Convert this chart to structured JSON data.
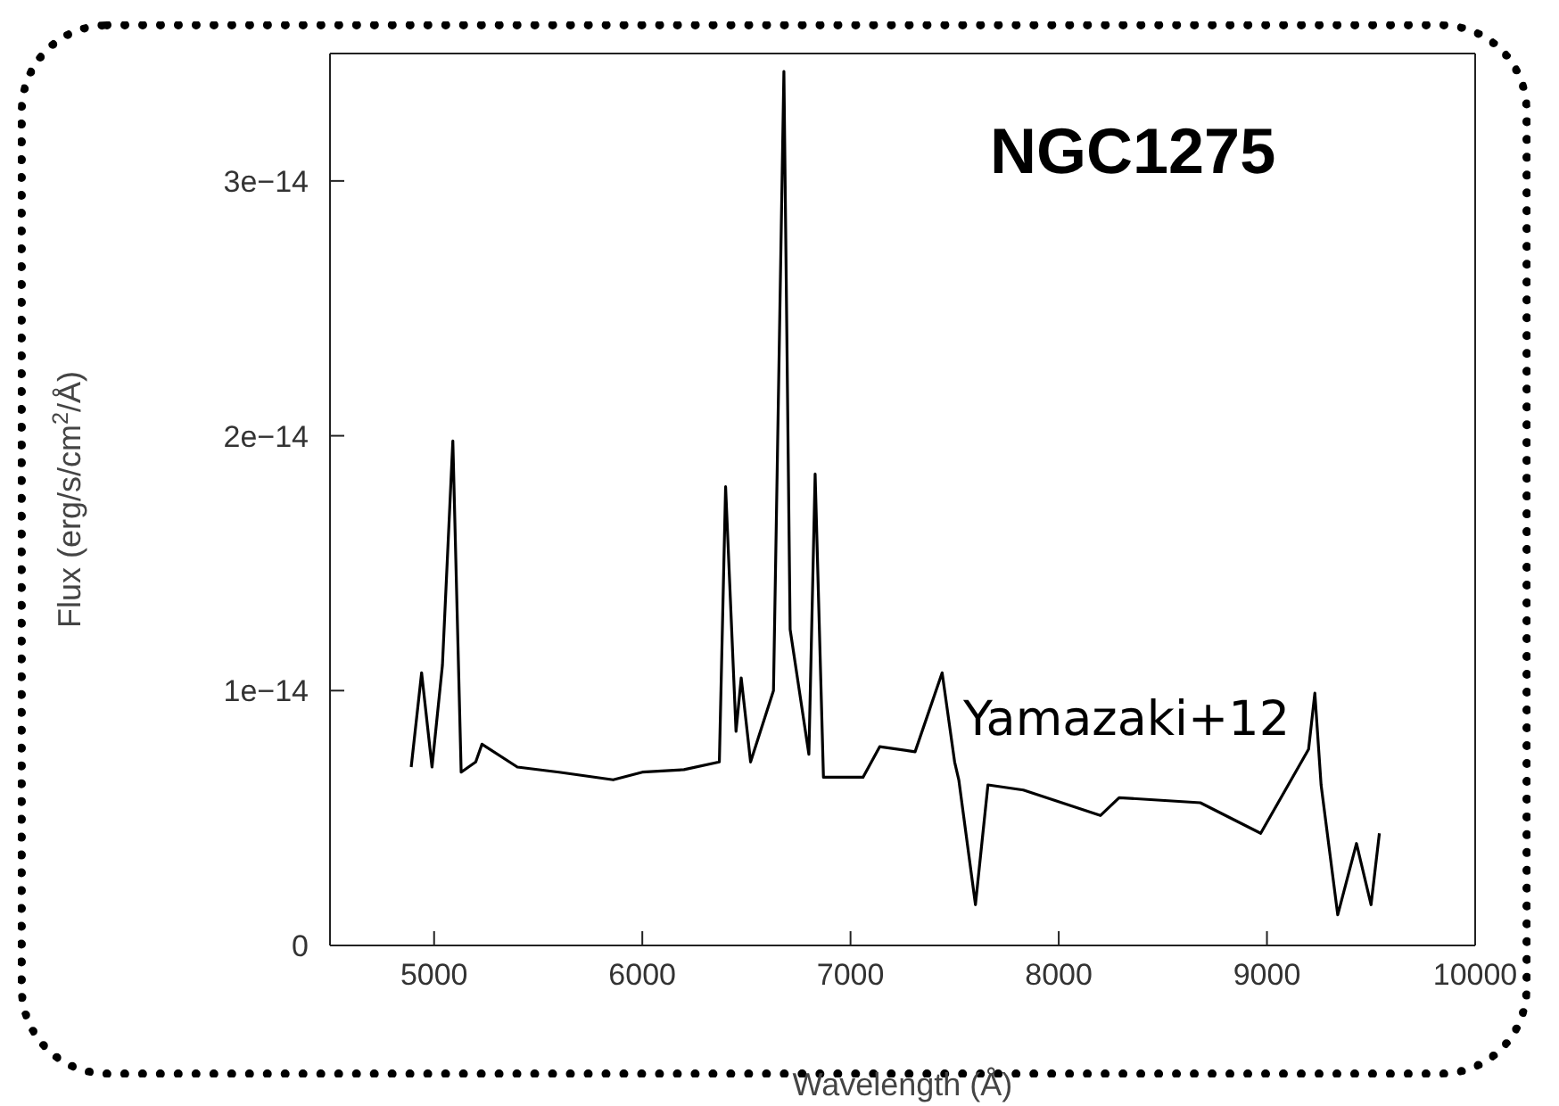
{
  "chart_data": {
    "type": "line",
    "title": "NGC1275",
    "xlabel": "Wavelength (Å)",
    "ylabel": "Flux (erg/s/cm$^{2}$/Å)",
    "annotations": [
      "Yamazaki+12"
    ],
    "series": [
      {
        "color": "#000000",
        "x": [
          4890,
          4940,
          4990,
          5040,
          5090,
          5130,
          5200,
          5230,
          5400,
          5600,
          5860,
          6000,
          6200,
          6370,
          6400,
          6450,
          6475,
          6520,
          6630,
          6680,
          6710,
          6800,
          6830,
          6870,
          7060,
          7140,
          7310,
          7440,
          7500,
          7520,
          7600,
          7660,
          7830,
          8200,
          8290,
          8680,
          8970,
          9200,
          9230,
          9260,
          9340,
          9430,
          9500,
          9540
        ],
        "values": [
          7e-15,
          1.07e-14,
          7e-15,
          1.1e-14,
          1.98e-14,
          6.8e-15,
          7.2e-15,
          7.9e-15,
          7e-15,
          6.8e-15,
          6.5e-15,
          6.8e-15,
          6.9e-15,
          7.2e-15,
          1.8e-14,
          8.4e-15,
          1.05e-14,
          7.2e-15,
          1e-14,
          3.43e-14,
          1.24e-14,
          7.5e-15,
          1.85e-14,
          6.6e-15,
          6.6e-15,
          7.8e-15,
          7.6e-15,
          1.07e-14,
          7.2e-15,
          6.5e-15,
          1.6e-15,
          6.3e-15,
          6.1e-15,
          5.1e-15,
          5.8e-15,
          5.6e-15,
          4.4e-15,
          7.7e-15,
          9.9e-15,
          6.3e-15,
          1.2e-15,
          4e-15,
          1.6e-15,
          4.4e-15
        ]
      }
    ],
    "xlim": [
      4500,
      10000
    ],
    "xticks": [
      5000,
      6000,
      7000,
      8000,
      9000,
      10000
    ],
    "ylim": [
      0,
      3.5e-14
    ],
    "yticks": [
      0,
      {
        "value": 1e-14,
        "label": "1e−14"
      },
      {
        "value": 2e-14,
        "label": "2e−14"
      },
      {
        "value": 3e-14,
        "label": "3e−14"
      }
    ],
    "grid": false,
    "legend": false,
    "marker": "none",
    "line_style": "solid"
  }
}
